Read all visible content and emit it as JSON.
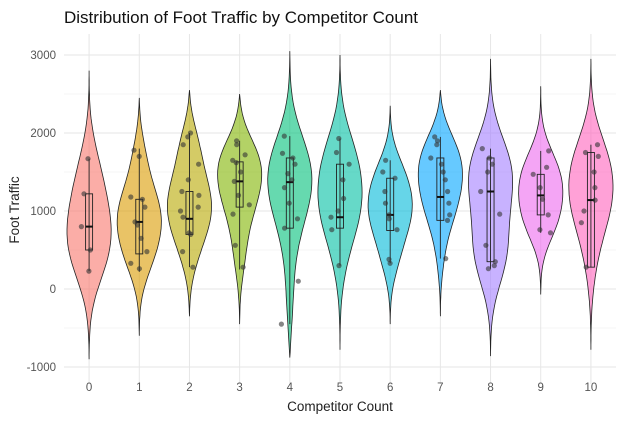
{
  "chart_data": {
    "type": "violin",
    "title": "Distribution of Foot Traffic by Competitor Count",
    "xlabel": "Competitor Count",
    "ylabel": "Foot Traffic",
    "ylim": [
      -1100,
      3200
    ],
    "y_ticks": [
      -1000,
      0,
      1000,
      2000,
      3000
    ],
    "grid": true,
    "legend": "none",
    "categories": [
      "0",
      "1",
      "2",
      "3",
      "4",
      "5",
      "6",
      "7",
      "8",
      "9",
      "10"
    ],
    "colors": [
      "#F8766D",
      "#DB9B00",
      "#B7A800",
      "#80B400",
      "#00C07A",
      "#00BFA3",
      "#00B9D8",
      "#00A5FF",
      "#A37FFF",
      "#EC69EF",
      "#FF62BC"
    ],
    "groups": [
      {
        "category": "0",
        "min": -900,
        "max": 2800,
        "peak": 750,
        "median": 800,
        "q1": 500,
        "q3": 1220,
        "whisker_low": 230,
        "whisker_high": 1670,
        "points": [
          230,
          500,
          800,
          1220,
          1670
        ]
      },
      {
        "category": "1",
        "min": -600,
        "max": 2450,
        "peak": 900,
        "median": 860,
        "q1": 450,
        "q3": 1150,
        "whisker_low": 220,
        "whisker_high": 1800,
        "points": [
          260,
          330,
          480,
          650,
          820,
          860,
          1050,
          1150,
          1180,
          1700,
          1780
        ]
      },
      {
        "category": "2",
        "min": -350,
        "max": 2550,
        "peak": 1100,
        "median": 900,
        "q1": 700,
        "q3": 1250,
        "whisker_low": 280,
        "whisker_high": 2000,
        "points": [
          280,
          480,
          700,
          720,
          920,
          1000,
          1050,
          1200,
          1250,
          1400,
          1600,
          1850,
          1950,
          2000
        ]
      },
      {
        "category": "3",
        "min": -450,
        "max": 2500,
        "peak": 1500,
        "median": 1380,
        "q1": 1050,
        "q3": 1630,
        "whisker_low": 250,
        "whisker_high": 1900,
        "points": [
          280,
          560,
          960,
          1080,
          1200,
          1380,
          1500,
          1620,
          1650,
          1720,
          1850,
          1900
        ]
      },
      {
        "category": "4",
        "min": -880,
        "max": 3050,
        "peak": 1450,
        "median": 1370,
        "q1": 780,
        "q3": 1680,
        "whisker_low": -450,
        "whisker_high": 1960,
        "points": [
          -450,
          100,
          780,
          900,
          1100,
          1300,
          1400,
          1480,
          1600,
          1680,
          1740,
          1960
        ]
      },
      {
        "category": "5",
        "min": -780,
        "max": 3000,
        "peak": 1400,
        "median": 920,
        "q1": 780,
        "q3": 1600,
        "whisker_low": 300,
        "whisker_high": 1930,
        "points": [
          300,
          760,
          920,
          1000,
          1160,
          1400,
          1600,
          1750,
          1930
        ]
      },
      {
        "category": "6",
        "min": -450,
        "max": 2350,
        "peak": 1050,
        "median": 950,
        "q1": 750,
        "q3": 1420,
        "whisker_low": 330,
        "whisker_high": 1650,
        "points": [
          330,
          380,
          760,
          900,
          950,
          1100,
          1250,
          1420,
          1500,
          1650
        ]
      },
      {
        "category": "7",
        "min": -350,
        "max": 2550,
        "peak": 1550,
        "median": 1180,
        "q1": 880,
        "q3": 1680,
        "whisker_low": 390,
        "whisker_high": 1950,
        "points": [
          390,
          880,
          950,
          1100,
          1250,
          1400,
          1500,
          1600,
          1680,
          1850,
          1900,
          1950
        ]
      },
      {
        "category": "8",
        "min": -860,
        "max": 2950,
        "peak": 1300,
        "median": 1250,
        "q1": 350,
        "q3": 1680,
        "whisker_low": 260,
        "whisker_high": 1800,
        "points": [
          260,
          300,
          350,
          560,
          960,
          1250,
          1500,
          1600,
          1680,
          1800
        ]
      },
      {
        "category": "9",
        "min": -70,
        "max": 2600,
        "peak": 1200,
        "median": 1200,
        "q1": 950,
        "q3": 1470,
        "whisker_low": 720,
        "whisker_high": 1770,
        "points": [
          720,
          760,
          950,
          1150,
          1300,
          1470,
          1560,
          1770
        ]
      },
      {
        "category": "10",
        "min": -780,
        "max": 2950,
        "peak": 1150,
        "median": 1140,
        "q1": 280,
        "q3": 1750,
        "whisker_low": 280,
        "whisker_high": 1850,
        "points": [
          280,
          850,
          1000,
          1140,
          1300,
          1500,
          1700,
          1750,
          1850
        ]
      }
    ]
  }
}
